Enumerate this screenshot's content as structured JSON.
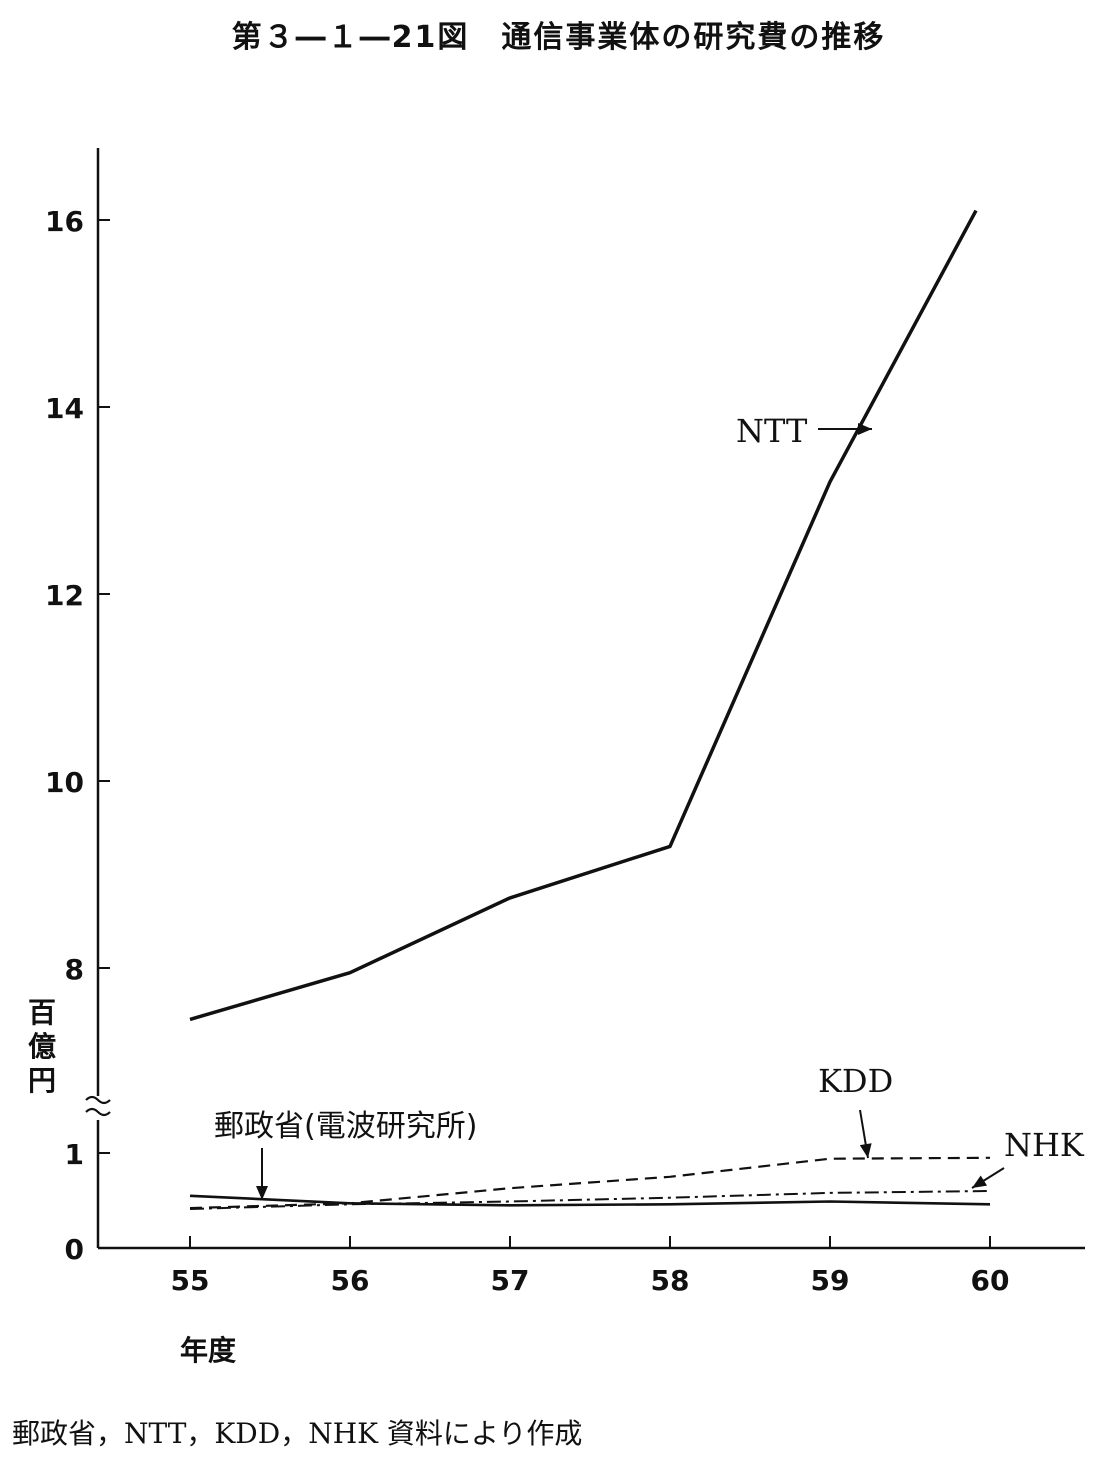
{
  "chart_data": {
    "type": "line",
    "title": "第３―１―21図　通信事業体の研究費の推移",
    "ylabel": "百億円",
    "xlabel": "年度",
    "x": [
      "55",
      "56",
      "57",
      "58",
      "59",
      "60"
    ],
    "y_ticks_lower": [
      "0",
      "1"
    ],
    "y_ticks_upper": [
      "8",
      "10",
      "12",
      "14",
      "16"
    ],
    "axis_break": true,
    "ylim_lower": [
      0,
      1.1
    ],
    "ylim_upper": [
      7,
      16.8
    ],
    "series": [
      {
        "name": "NTT",
        "style": "solid-bold",
        "values": [
          7.45,
          7.95,
          8.75,
          9.3,
          13.2,
          16.1
        ],
        "color": "#111111"
      },
      {
        "name": "KDD",
        "style": "dashed",
        "values": [
          0.42,
          0.47,
          0.63,
          0.75,
          0.94,
          0.95
        ],
        "color": "#111111"
      },
      {
        "name": "NHK",
        "style": "dash-dot",
        "values": [
          0.41,
          0.46,
          0.49,
          0.53,
          0.58,
          0.6
        ],
        "color": "#111111"
      },
      {
        "name": "郵政省(電波研究所)",
        "style": "solid",
        "values": [
          0.55,
          0.47,
          0.45,
          0.46,
          0.49,
          0.46
        ],
        "color": "#111111"
      }
    ]
  },
  "source_note": "郵政省，NTT，KDD，NHK 資料により作成"
}
